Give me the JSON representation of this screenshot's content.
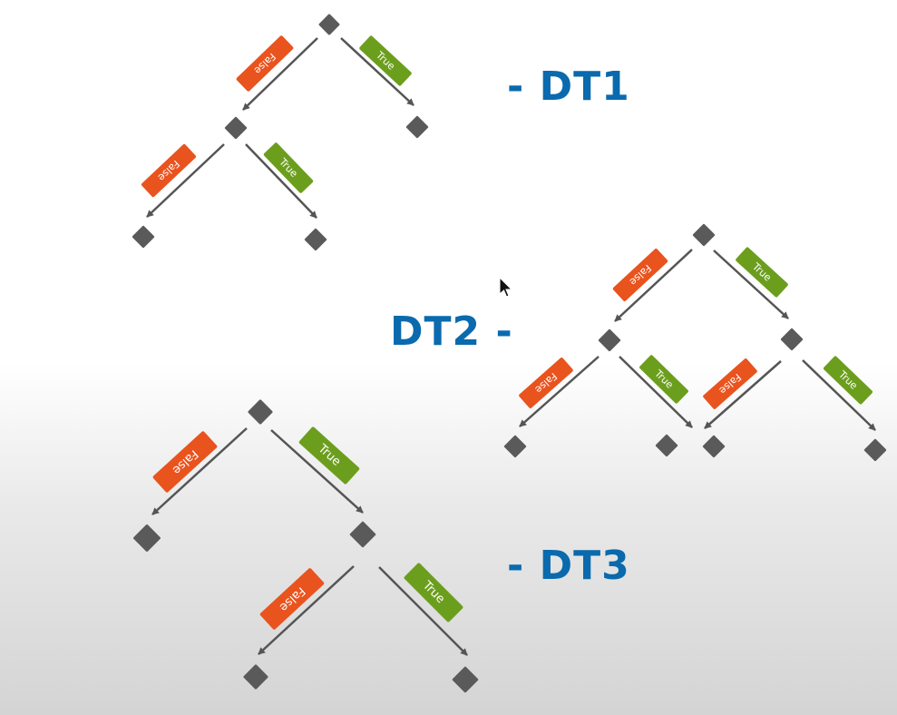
{
  "edge_labels": {
    "false_label": "False",
    "true_label": "True"
  },
  "colors": {
    "false_tag": "#e9531e",
    "true_tag": "#6c9e1e",
    "node": "#5a5a5a",
    "edge": "#555555",
    "title": "#0a6aad"
  },
  "trees": [
    {
      "id": "dt1",
      "title": "- DT1"
    },
    {
      "id": "dt2",
      "title": "DT2 -"
    },
    {
      "id": "dt3",
      "title": "- DT3"
    }
  ]
}
